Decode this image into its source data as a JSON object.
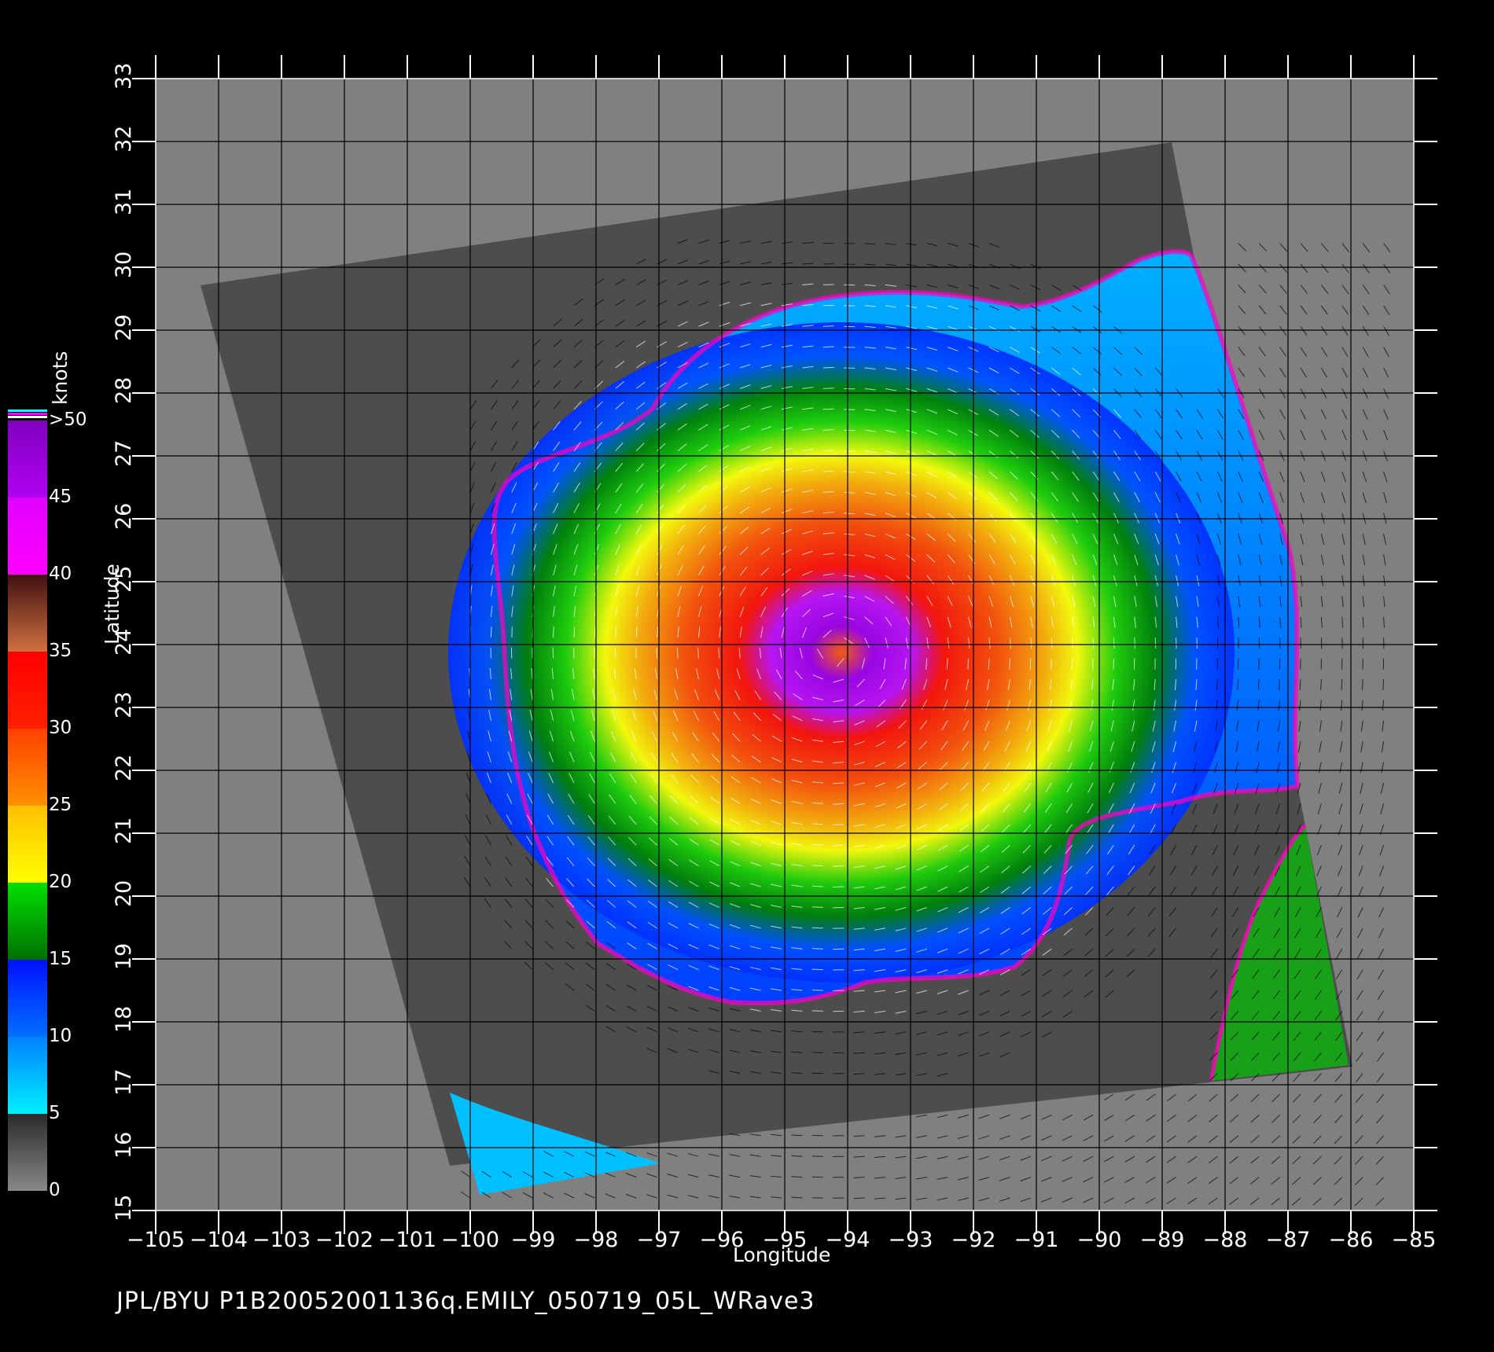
{
  "footer_text": "JPL/BYU  P1B20052001136q.EMILY_050719_05L_WRave3",
  "axes": {
    "x_label": "Longitude",
    "y_label": "Latitude",
    "x_ticks": [
      "−105",
      "−104",
      "−103",
      "−102",
      "−101",
      "−100",
      "−99",
      "−98",
      "−97",
      "−96",
      "−95",
      "−94",
      "−93",
      "−92",
      "−91",
      "−90",
      "−89",
      "−88",
      "−87",
      "−86",
      "−85"
    ],
    "y_ticks": [
      "15",
      "16",
      "17",
      "18",
      "19",
      "20",
      "21",
      "22",
      "23",
      "24",
      "25",
      "26",
      "27",
      "28",
      "29",
      "30",
      "31",
      "32",
      "33"
    ],
    "x_range": [
      -105,
      -85
    ],
    "y_range": [
      15,
      33
    ]
  },
  "colorbar": {
    "units": "knots",
    "tick_labels": [
      "0",
      "5",
      "10",
      "15",
      "20",
      "25",
      "30",
      "35",
      "40",
      "45",
      ">50"
    ],
    "bands": [
      {
        "from": 0,
        "to": 5,
        "colors": [
          "#888888",
          "#2a2a2a"
        ]
      },
      {
        "from": 5,
        "to": 10,
        "colors": [
          "#00f0ff",
          "#0080ff"
        ]
      },
      {
        "from": 10,
        "to": 15,
        "colors": [
          "#0070ff",
          "#0010ff"
        ]
      },
      {
        "from": 15,
        "to": 20,
        "colors": [
          "#007000",
          "#00e000"
        ]
      },
      {
        "from": 20,
        "to": 25,
        "colors": [
          "#ffff00",
          "#ffc000"
        ]
      },
      {
        "from": 25,
        "to": 30,
        "colors": [
          "#ff9000",
          "#ff4000"
        ]
      },
      {
        "from": 30,
        "to": 35,
        "colors": [
          "#ff2000",
          "#ff0000"
        ]
      },
      {
        "from": 35,
        "to": 40,
        "colors": [
          "#d07040",
          "#401010"
        ]
      },
      {
        "from": 40,
        "to": 45,
        "colors": [
          "#ff00ff",
          "#e000ff"
        ]
      },
      {
        "from": 45,
        "to": 50,
        "colors": [
          "#b000f0",
          "#8000c0"
        ]
      }
    ]
  },
  "colors": {
    "background": "#000000",
    "land_gray": "#808080",
    "swath_gray": "#4d4d4d",
    "grid": "#000000",
    "text": "#ffffff"
  },
  "storm": {
    "name": "EMILY",
    "date_code": "050719",
    "center_lon": -94.2,
    "center_lat": 23.9,
    "max_wind_knots": 50
  }
}
